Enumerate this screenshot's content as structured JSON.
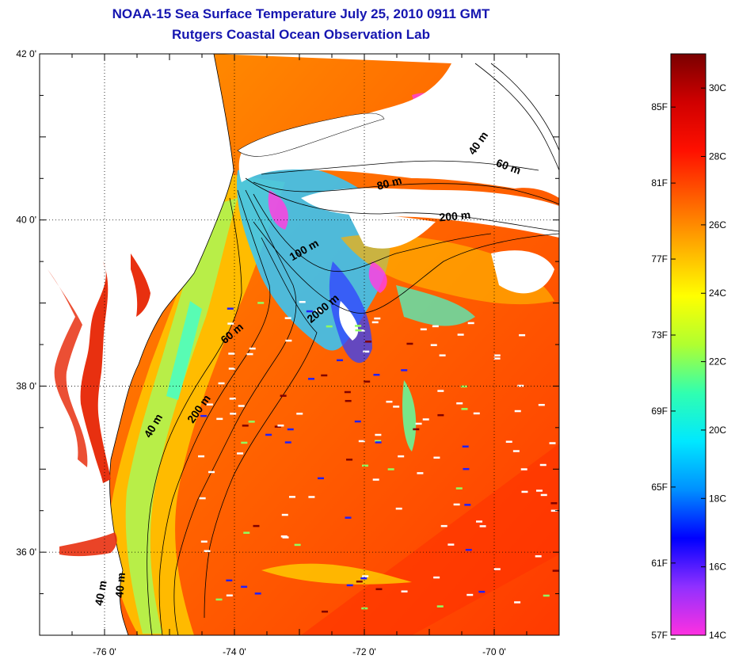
{
  "title": {
    "line1": "NOAA-15 Sea Surface Temperature July 25, 2010 0911 GMT",
    "line2": "Rutgers Coastal Ocean Observation Lab"
  },
  "map": {
    "lat_range": [
      35,
      42
    ],
    "lon_range": [
      -77,
      -69
    ],
    "lat_ticks": [
      {
        "value": 42,
        "label": "42 0'"
      },
      {
        "value": 40,
        "label": "40 0'"
      },
      {
        "value": 38,
        "label": "38 0'"
      },
      {
        "value": 36,
        "label": "36 0'"
      }
    ],
    "lon_ticks": [
      {
        "value": -76,
        "label": "-76 0'"
      },
      {
        "value": -74,
        "label": "-74 0'"
      },
      {
        "value": -72,
        "label": "-72 0'"
      },
      {
        "value": -70,
        "label": "-70 0'"
      }
    ],
    "contour_labels": [
      {
        "text": "40 m",
        "lon": -70.2,
        "lat": 40.9,
        "angle": -55
      },
      {
        "text": "60 m",
        "lon": -69.8,
        "lat": 40.6,
        "angle": 20
      },
      {
        "text": "80 m",
        "lon": -71.6,
        "lat": 40.4,
        "angle": -15
      },
      {
        "text": "200 m",
        "lon": -70.6,
        "lat": 40.0,
        "angle": -5
      },
      {
        "text": "100 m",
        "lon": -72.9,
        "lat": 39.6,
        "angle": -30
      },
      {
        "text": "2000 m",
        "lon": -72.6,
        "lat": 38.9,
        "angle": -40
      },
      {
        "text": "60 m",
        "lon": -74.0,
        "lat": 38.6,
        "angle": -40
      },
      {
        "text": "200 m",
        "lon": -74.5,
        "lat": 37.7,
        "angle": -55
      },
      {
        "text": "40 m",
        "lon": -75.2,
        "lat": 37.5,
        "angle": -60
      },
      {
        "text": "40 m",
        "lon": -76.0,
        "lat": 35.5,
        "angle": -80
      },
      {
        "text": "40 m",
        "lon": -75.7,
        "lat": 35.6,
        "angle": -85
      }
    ]
  },
  "colorbar": {
    "colors": [
      "#ff30e0",
      "#9030ff",
      "#0000ff",
      "#0090ff",
      "#00e8ff",
      "#30ffb0",
      "#b0ff30",
      "#ffff00",
      "#ffb000",
      "#ff6000",
      "#ff1000",
      "#d00000",
      "#7a0000"
    ],
    "celsius_min": 14,
    "celsius_max": 31,
    "fahrenheit_labels": [
      {
        "value": 85,
        "label": "85F"
      },
      {
        "value": 81,
        "label": "81F"
      },
      {
        "value": 77,
        "label": "77F"
      },
      {
        "value": 73,
        "label": "73F"
      },
      {
        "value": 69,
        "label": "69F"
      },
      {
        "value": 65,
        "label": "65F"
      },
      {
        "value": 61,
        "label": "61F"
      },
      {
        "value": 57,
        "label": "57F"
      }
    ],
    "celsius_labels": [
      {
        "value": 30,
        "label": "30C"
      },
      {
        "value": 28,
        "label": "28C"
      },
      {
        "value": 26,
        "label": "26C"
      },
      {
        "value": 24,
        "label": "24C"
      },
      {
        "value": 22,
        "label": "22C"
      },
      {
        "value": 20,
        "label": "20C"
      },
      {
        "value": 18,
        "label": "18C"
      },
      {
        "value": 16,
        "label": "16C"
      },
      {
        "value": 14,
        "label": "14C"
      }
    ]
  },
  "colors": {
    "title": "#1515b0",
    "ocean_warm": "#ff4a00",
    "ocean_mid": "#ff8a00",
    "shelf": "#ffc000",
    "coastal_cool": "#40ffd0",
    "land": "#ffffff",
    "bay": "#e83010"
  }
}
